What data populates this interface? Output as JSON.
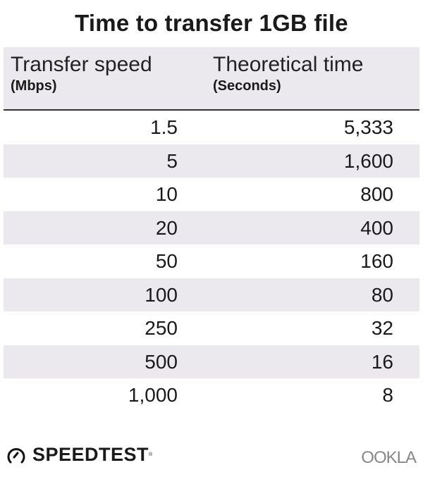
{
  "title": "Time to transfer 1GB file",
  "chart_data": {
    "type": "table",
    "title": "Time to transfer 1GB file",
    "columns": [
      {
        "label": "Transfer speed",
        "unit": "(Mbps)"
      },
      {
        "label": "Theoretical time",
        "unit": "(Seconds)"
      }
    ],
    "rows": [
      [
        "1.5",
        "5,333"
      ],
      [
        "5",
        "1,600"
      ],
      [
        "10",
        "800"
      ],
      [
        "20",
        "400"
      ],
      [
        "50",
        "160"
      ],
      [
        "100",
        "80"
      ],
      [
        "250",
        "32"
      ],
      [
        "500",
        "16"
      ],
      [
        "1,000",
        "8"
      ]
    ],
    "stripe_color": "#ebe9ee"
  },
  "footer": {
    "speedtest_logo": "SPEEDTEST",
    "ookla_logo": "OOKLA",
    "icon": "speedometer-icon"
  }
}
